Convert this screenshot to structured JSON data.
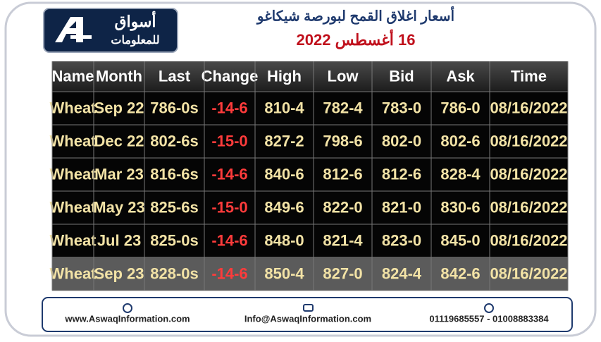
{
  "header": {
    "logo_name": "أسواق",
    "logo_sub": "للمعلومات",
    "title": "أسعار اغلاق القمح لبورصة شيكاغو",
    "date": "16 أغسطس 2022"
  },
  "table": {
    "headers": [
      "Name",
      "Month",
      "Last",
      "Change",
      "High",
      "Low",
      "Bid",
      "Ask",
      "Time"
    ],
    "rows": [
      [
        "Wheat",
        "Sep 22",
        "786-0s",
        "-14-6",
        "810-4",
        "782-4",
        "783-0",
        "786-0",
        "08/16/2022"
      ],
      [
        "Wheat",
        "Dec 22",
        "802-6s",
        "-15-0",
        "827-2",
        "798-6",
        "802-0",
        "802-6",
        "08/16/2022"
      ],
      [
        "Wheat",
        "Mar 23",
        "816-6s",
        "-14-6",
        "840-6",
        "812-6",
        "812-6",
        "828-4",
        "08/16/2022"
      ],
      [
        "Wheat",
        "May 23",
        "825-6s",
        "-15-0",
        "849-6",
        "822-0",
        "821-0",
        "830-6",
        "08/16/2022"
      ],
      [
        "Wheat",
        "Jul 23",
        "825-0s",
        "-14-6",
        "848-0",
        "821-4",
        "823-0",
        "845-0",
        "08/16/2022"
      ],
      [
        "Wheat",
        "Sep 23",
        "828-0s",
        "-14-6",
        "850-4",
        "827-0",
        "824-4",
        "842-6",
        "08/16/2022"
      ]
    ]
  },
  "footer": {
    "website": "www.AswaqInformation.com",
    "email": "Info@AswaqInformation.com",
    "phones": "01119685557 - 01008883384"
  }
}
